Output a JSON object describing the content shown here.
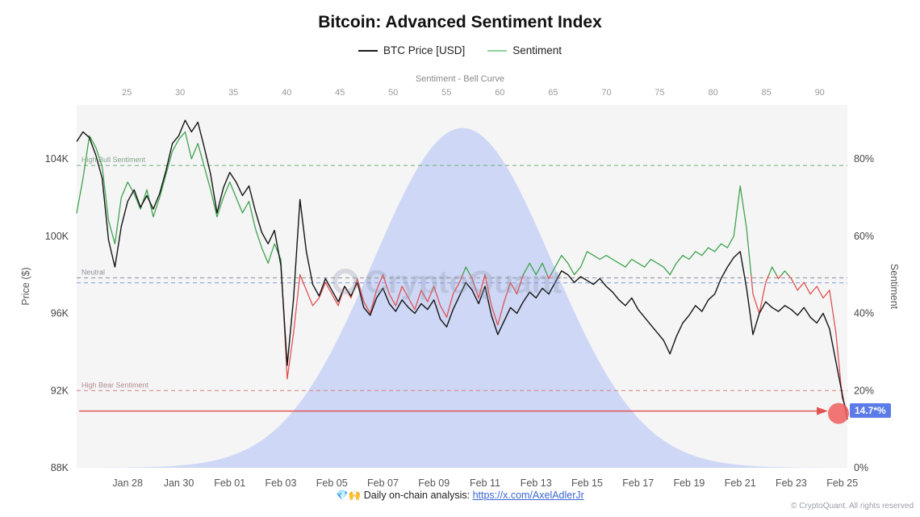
{
  "title": "Bitcoin: Advanced Sentiment Index",
  "legend": [
    {
      "label": "BTC Price [USD]",
      "color": "#1a1a1a"
    },
    {
      "label": "Sentiment",
      "color": "#8fcf9f"
    }
  ],
  "footer": {
    "icons": "💎🙌",
    "text": "Daily on-chain analysis:",
    "link_text": "https://x.com/AxelAdlerJr",
    "link_href": "https://x.com/AxelAdlerJr",
    "copyright": "© CryptoQuant. All rights reserved"
  },
  "chart_data": {
    "type": "line",
    "title": "Bitcoin: Advanced Sentiment Index",
    "watermark": "CryptoQuant",
    "plot_bg": "#f5f5f6",
    "top_axis": {
      "label": "Sentiment - Bell Curve",
      "ticks": [
        25,
        30,
        35,
        40,
        45,
        50,
        55,
        60,
        65,
        70,
        75,
        80,
        85,
        90
      ],
      "range": [
        20.3,
        92.6
      ]
    },
    "x_axis": {
      "tick_labels": [
        "Jan 28",
        "Jan 30",
        "Feb 01",
        "Feb 03",
        "Feb 05",
        "Feb 07",
        "Feb 09",
        "Feb 11",
        "Feb 13",
        "Feb 15",
        "Feb 17",
        "Feb 19",
        "Feb 21",
        "Feb 23",
        "Feb 25"
      ],
      "tick_days": [
        2,
        4,
        6,
        8,
        10,
        12,
        14,
        16,
        18,
        20,
        22,
        24,
        26,
        28,
        30
      ],
      "range_days": [
        0,
        30.2
      ],
      "start_date": "Jan 26"
    },
    "left_axis": {
      "label": "Price ($)",
      "tick_labels": [
        "88K",
        "92K",
        "96K",
        "100K",
        "104K"
      ],
      "tick_values": [
        88,
        92,
        96,
        100,
        104
      ],
      "range": [
        88,
        106.8
      ]
    },
    "right_axis": {
      "label": "Sentiment",
      "tick_labels": [
        "0%",
        "20%",
        "40%",
        "60%",
        "80%"
      ],
      "tick_values": [
        0,
        20,
        40,
        60,
        80
      ],
      "range": [
        0,
        94
      ]
    },
    "thresholds": [
      {
        "label": "High Bull Sentiment",
        "value": 78.3,
        "color": "#7cb387",
        "label_color": "#84a489",
        "style": "dashed"
      },
      {
        "label": "Neutral",
        "value": 49.2,
        "color": "#9aa0a6",
        "label_color": "#8d9196",
        "style": "dashed"
      },
      {
        "label": "",
        "value": 47.9,
        "color": "#8fa3dd",
        "label_color": "#8fa3dd",
        "style": "dashed"
      },
      {
        "label": "High Bear Sentiment",
        "value": 20,
        "color": "#d98c8c",
        "label_color": "#b08c8c",
        "style": "dashed"
      }
    ],
    "bell_curve": {
      "center": 56.5,
      "sigma": 8.4,
      "peak_pct": 88,
      "color": "#c7d1f4"
    },
    "x_days": [
      0,
      0.25,
      0.5,
      0.75,
      1,
      1.25,
      1.5,
      1.75,
      2,
      2.25,
      2.5,
      2.75,
      3,
      3.25,
      3.5,
      3.75,
      4,
      4.25,
      4.5,
      4.75,
      5,
      5.25,
      5.5,
      5.75,
      6,
      6.25,
      6.5,
      6.75,
      7,
      7.25,
      7.5,
      7.75,
      8,
      8.25,
      8.5,
      8.75,
      9,
      9.25,
      9.5,
      9.75,
      10,
      10.25,
      10.5,
      10.75,
      11,
      11.25,
      11.5,
      11.75,
      12,
      12.25,
      12.5,
      12.75,
      13,
      13.25,
      13.5,
      13.75,
      14,
      14.25,
      14.5,
      14.75,
      15,
      15.25,
      15.5,
      15.75,
      16,
      16.25,
      16.5,
      16.75,
      17,
      17.25,
      17.5,
      17.75,
      18,
      18.25,
      18.5,
      18.75,
      19,
      19.25,
      19.5,
      19.75,
      20,
      20.25,
      20.5,
      20.75,
      21,
      21.25,
      21.5,
      21.75,
      22,
      22.25,
      22.5,
      22.75,
      23,
      23.25,
      23.5,
      23.75,
      24,
      24.25,
      24.5,
      24.75,
      25,
      25.25,
      25.5,
      25.75,
      26,
      26.25,
      26.5,
      26.75,
      27,
      27.25,
      27.5,
      27.75,
      28,
      28.25,
      28.5,
      28.75,
      29,
      29.25,
      29.5,
      29.75,
      30,
      30.2
    ],
    "series": [
      {
        "name": "BTC Price [USD]",
        "axis": "price",
        "color": "#141414",
        "unit": "K USD",
        "values": [
          104.9,
          105.4,
          105.1,
          104.2,
          103.0,
          99.8,
          98.4,
          100.5,
          101.8,
          102.4,
          101.5,
          102.1,
          101.4,
          102.2,
          103.4,
          104.8,
          105.2,
          106.0,
          105.4,
          105.9,
          104.6,
          103.2,
          101.2,
          102.5,
          103.3,
          102.8,
          102.1,
          102.6,
          101.3,
          100.2,
          99.6,
          100.3,
          98.5,
          93.3,
          96.8,
          101.9,
          99.2,
          97.5,
          96.9,
          97.8,
          97.2,
          96.6,
          97.4,
          96.9,
          97.6,
          96.3,
          95.9,
          96.8,
          97.3,
          96.5,
          96.1,
          96.7,
          96.3,
          96.0,
          96.5,
          96.2,
          96.7,
          95.7,
          95.3,
          96.2,
          96.9,
          97.6,
          97.2,
          96.5,
          97.4,
          95.9,
          94.9,
          95.6,
          96.3,
          96.0,
          96.6,
          97.1,
          96.8,
          97.3,
          97.0,
          97.6,
          98.2,
          98.0,
          97.6,
          97.9,
          97.7,
          97.5,
          97.8,
          97.4,
          97.1,
          96.7,
          96.4,
          96.8,
          96.2,
          95.8,
          95.4,
          95.0,
          94.6,
          93.9,
          94.8,
          95.5,
          95.9,
          96.4,
          96.1,
          96.7,
          97.0,
          97.8,
          98.4,
          98.9,
          99.2,
          97.3,
          94.9,
          96.0,
          96.6,
          96.3,
          96.1,
          96.4,
          96.2,
          95.9,
          96.3,
          95.8,
          95.5,
          96.0,
          95.2,
          93.5,
          91.8,
          90.5
        ]
      },
      {
        "name": "Sentiment",
        "axis": "sentiment",
        "threshold": 50,
        "color_above": "#3fa34d",
        "color_below": "#e05252",
        "unit": "%",
        "values": [
          66,
          75,
          86,
          83,
          78,
          64,
          58,
          70,
          74,
          71,
          67,
          72,
          65,
          70,
          76,
          82,
          85,
          87,
          80,
          84,
          78,
          72,
          65,
          70,
          74,
          70,
          66,
          69,
          62,
          57,
          53,
          58,
          54,
          23,
          35,
          50,
          46,
          42,
          44,
          48,
          45,
          42,
          47,
          44,
          49,
          43,
          40,
          46,
          50,
          45,
          42,
          47,
          44,
          41,
          46,
          43,
          47,
          42,
          39,
          45,
          48,
          52,
          49,
          44,
          50,
          42,
          37,
          43,
          48,
          45,
          50,
          53,
          50,
          53,
          49,
          52,
          55,
          53,
          50,
          52,
          56,
          55,
          54,
          55,
          54,
          53,
          52,
          54,
          53,
          52,
          54,
          53,
          52,
          50,
          53,
          55,
          54,
          56,
          55,
          57,
          56,
          58,
          57,
          60,
          73,
          62,
          45,
          40,
          48,
          52,
          49,
          51,
          49,
          46,
          48,
          45,
          47,
          44,
          46,
          35,
          18,
          14.7
        ]
      }
    ],
    "annotation": {
      "arrow_y_pct": 14.7,
      "label": "14.7*%",
      "label_bg": "#5b7ce8",
      "arrow_color": "#e05454",
      "marker_color": "#f15e5e"
    }
  }
}
